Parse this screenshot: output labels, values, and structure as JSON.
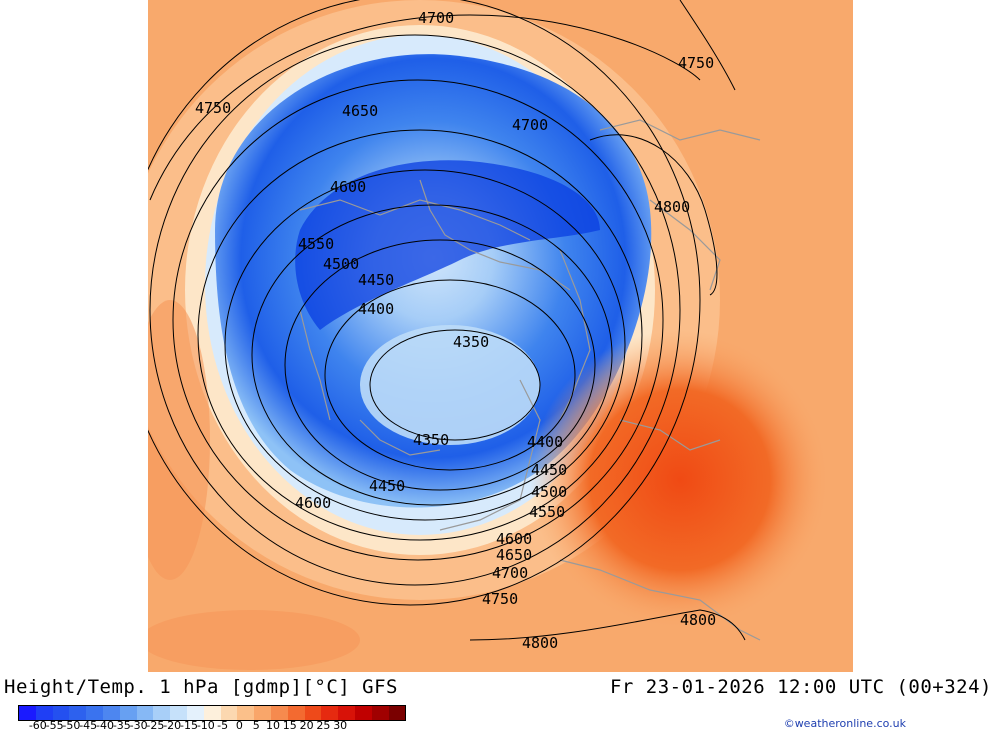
{
  "header": {
    "title": "Height/Temp. 1 hPa [gdmp][°C] GFS",
    "datetime": "Fr 23-01-2026 12:00 UTC (00+324)"
  },
  "credit": "©weatheronline.co.uk",
  "colors": {
    "cold_core": "#0a3ee0",
    "cold_mid": "#3f84ee",
    "cold_edge": "#8ec2f6",
    "pale": "#d7eafc",
    "cream": "#fde6c8",
    "warm_base": "#f8a96c",
    "warm_light": "#fbbe8a",
    "warm_strong": "#f26a26",
    "hot": "#f04a14",
    "contour": "#000000",
    "coast": "#9a9a9a"
  },
  "legend": {
    "labels": [
      "-60",
      "-55",
      "-50",
      "-45",
      "-40",
      "-35",
      "-30",
      "-25",
      "-20",
      "-15",
      "-10",
      "-5",
      "0",
      "5",
      "10",
      "15",
      "20",
      "25",
      "30"
    ],
    "colors": [
      "#1a1aff",
      "#1f3ff5",
      "#2450f0",
      "#2d61ee",
      "#3a73ef",
      "#4d86f0",
      "#67a0f2",
      "#86b8f5",
      "#a8cff8",
      "#c6e1fa",
      "#e4f1fc",
      "#fdf0dc",
      "#fcd8b0",
      "#fbc08a",
      "#f9a66a",
      "#f68a4e",
      "#f36a30",
      "#ee4a1a",
      "#e62a10",
      "#d81208",
      "#c00000",
      "#a00000",
      "#7a0000"
    ]
  },
  "contours": [
    {
      "label": "4700"
    },
    {
      "label": "4750"
    },
    {
      "label": "4750"
    },
    {
      "label": "4650"
    },
    {
      "label": "4700"
    },
    {
      "label": "4600"
    },
    {
      "label": "4800"
    },
    {
      "label": "4550"
    },
    {
      "label": "4500"
    },
    {
      "label": "4450"
    },
    {
      "label": "4400"
    },
    {
      "label": "4350"
    },
    {
      "label": "4350"
    },
    {
      "label": "4400"
    },
    {
      "label": "4450"
    },
    {
      "label": "4450"
    },
    {
      "label": "4500"
    },
    {
      "label": "4550"
    },
    {
      "label": "4600"
    },
    {
      "label": "4600"
    },
    {
      "label": "4650"
    },
    {
      "label": "4700"
    },
    {
      "label": "4750"
    },
    {
      "label": "4800"
    },
    {
      "label": "4800"
    }
  ]
}
